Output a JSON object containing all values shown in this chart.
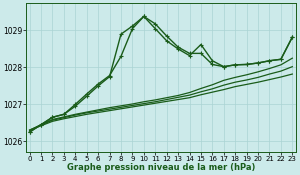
{
  "title": "Graphe pression niveau de la mer (hPa)",
  "bg_color": "#cceaea",
  "grid_color": "#aad4d4",
  "line_color": "#1a5c1a",
  "xlim": [
    -0.3,
    23.3
  ],
  "ylim": [
    1025.7,
    1029.75
  ],
  "yticks": [
    1026,
    1027,
    1028,
    1029
  ],
  "xticks": [
    0,
    1,
    2,
    3,
    4,
    5,
    6,
    7,
    8,
    9,
    10,
    11,
    12,
    13,
    14,
    15,
    16,
    17,
    18,
    19,
    20,
    21,
    22,
    23
  ],
  "series": [
    {
      "x": [
        0,
        1,
        2,
        3,
        4,
        5,
        6,
        7,
        8,
        9,
        10,
        11,
        12,
        13,
        14,
        15,
        16,
        17,
        18,
        19,
        20,
        21,
        22,
        23
      ],
      "y": [
        1026.3,
        1026.42,
        1026.54,
        1026.61,
        1026.67,
        1026.73,
        1026.78,
        1026.83,
        1026.88,
        1026.93,
        1026.98,
        1027.03,
        1027.08,
        1027.13,
        1027.18,
        1027.26,
        1027.33,
        1027.4,
        1027.48,
        1027.54,
        1027.6,
        1027.67,
        1027.74,
        1027.82
      ],
      "marker": false,
      "linewidth": 0.9,
      "linestyle": "-"
    },
    {
      "x": [
        0,
        1,
        2,
        3,
        4,
        5,
        6,
        7,
        8,
        9,
        10,
        11,
        12,
        13,
        14,
        15,
        16,
        17,
        18,
        19,
        20,
        21,
        22,
        23
      ],
      "y": [
        1026.3,
        1026.44,
        1026.57,
        1026.64,
        1026.71,
        1026.77,
        1026.82,
        1026.87,
        1026.92,
        1026.97,
        1027.02,
        1027.07,
        1027.13,
        1027.19,
        1027.25,
        1027.34,
        1027.42,
        1027.52,
        1027.6,
        1027.66,
        1027.73,
        1027.82,
        1027.9,
        1028.02
      ],
      "marker": false,
      "linewidth": 0.9,
      "linestyle": "-"
    },
    {
      "x": [
        0,
        1,
        2,
        3,
        4,
        5,
        6,
        7,
        8,
        9,
        10,
        11,
        12,
        13,
        14,
        15,
        16,
        17,
        18,
        19,
        20,
        21,
        22,
        23
      ],
      "y": [
        1026.3,
        1026.45,
        1026.59,
        1026.66,
        1026.73,
        1026.79,
        1026.85,
        1026.91,
        1026.96,
        1027.01,
        1027.07,
        1027.12,
        1027.18,
        1027.24,
        1027.32,
        1027.43,
        1027.53,
        1027.65,
        1027.73,
        1027.8,
        1027.88,
        1027.97,
        1028.07,
        1028.25
      ],
      "marker": false,
      "linewidth": 0.9,
      "linestyle": "-"
    },
    {
      "x": [
        0,
        1,
        2,
        3,
        4,
        5,
        6,
        7,
        8,
        9,
        10,
        11,
        12,
        13,
        14,
        15,
        16,
        17,
        18,
        19,
        20,
        21,
        22,
        23
      ],
      "y": [
        1026.25,
        1026.45,
        1026.65,
        1026.73,
        1027.0,
        1027.28,
        1027.55,
        1027.78,
        1028.3,
        1029.05,
        1029.38,
        1029.18,
        1028.85,
        1028.55,
        1028.38,
        1028.38,
        1028.08,
        1028.02,
        1028.07,
        1028.08,
        1028.12,
        1028.18,
        1028.22,
        1028.82
      ],
      "marker": true,
      "linewidth": 1.0,
      "linestyle": "-"
    },
    {
      "x": [
        0,
        1,
        2,
        3,
        4,
        5,
        6,
        7,
        8,
        9,
        10,
        11,
        12,
        13,
        14,
        15,
        16,
        17,
        18,
        19,
        20,
        21,
        22,
        23
      ],
      "y": [
        1026.25,
        1026.45,
        1026.65,
        1026.73,
        1026.95,
        1027.22,
        1027.5,
        1027.75,
        1028.9,
        1029.12,
        1029.38,
        1029.05,
        1028.72,
        1028.5,
        1028.32,
        1028.62,
        1028.18,
        1028.02,
        1028.07,
        1028.08,
        1028.12,
        1028.18,
        1028.22,
        1028.82
      ],
      "marker": true,
      "linewidth": 1.0,
      "linestyle": "-"
    }
  ]
}
